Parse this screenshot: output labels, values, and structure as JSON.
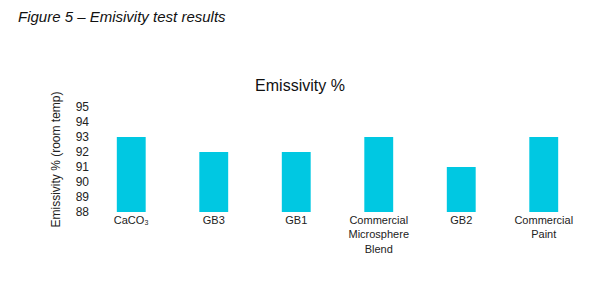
{
  "caption": "Figure 5 – Emisivity test results",
  "chart_data": {
    "type": "bar",
    "title": "Emissivity %",
    "y_label": "Emissivity % (room temp)",
    "categories": [
      "CaCO₃",
      "GB3",
      "GB1",
      "Commercial Microsphere Blend",
      "GB2",
      "Commercial Paint"
    ],
    "values": [
      93,
      92,
      92,
      93,
      91,
      93
    ],
    "color": "#00c8e2",
    "ylim": [
      88,
      95
    ],
    "yticks": [
      88,
      89,
      90,
      91,
      92,
      93,
      94,
      95
    ],
    "grid": false,
    "data_labels": false
  }
}
